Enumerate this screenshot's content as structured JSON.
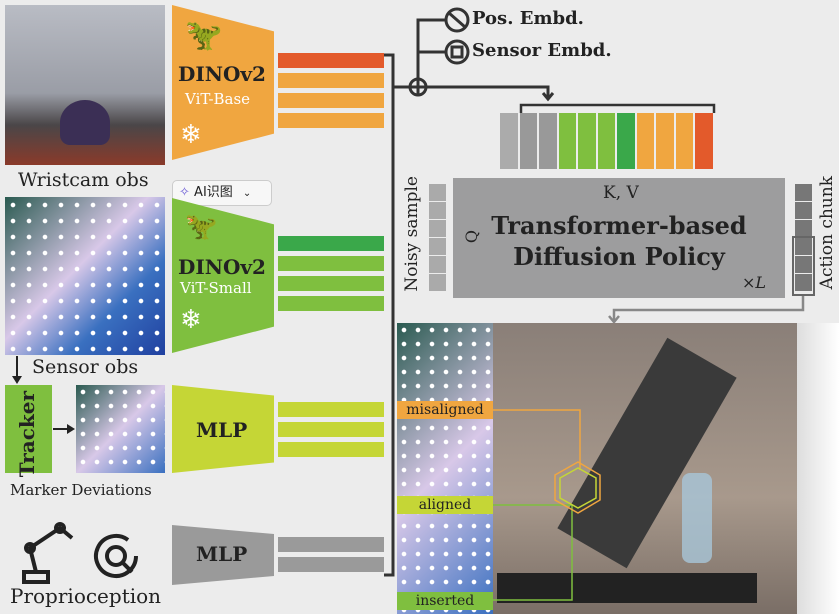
{
  "inputs": {
    "wristcam_label": "Wristcam obs",
    "sensor_label": "Sensor obs",
    "tracker_label": "Tracker",
    "marker_label": "Marker Deviations",
    "proprio_label": "Proprioception"
  },
  "encoders": [
    {
      "name": "DINOv2",
      "sub": "ViT-Base",
      "color": "#f0a640"
    },
    {
      "name": "DINOv2",
      "sub": "ViT-Small",
      "color": "#7fbf3f"
    },
    {
      "name": "MLP",
      "sub": "",
      "color": "#c5d636"
    },
    {
      "name": "MLP",
      "sub": "",
      "color": "#9a9a9a"
    }
  ],
  "ai_button": {
    "label": "AI识图"
  },
  "embeddings": {
    "pos": "Pos. Embd.",
    "sensor": "Sensor Embd."
  },
  "policy": {
    "kv": "K, V",
    "q": "Q",
    "title_line1": "Transformer-based",
    "title_line2": "Diffusion Policy",
    "repeat": "×L",
    "noisy": "Noisy sample",
    "action": "Action chunk"
  },
  "token_colors": [
    "#ababab",
    "#999999",
    "#999999",
    "#7fbf3f",
    "#7fbf3f",
    "#7fbf3f",
    "#3aa84a",
    "#f0a640",
    "#f0a640",
    "#f0a640",
    "#e35a2b"
  ],
  "states": [
    "misaligned",
    "aligned",
    "inserted"
  ],
  "colors": {
    "orange": "#f0a640",
    "red": "#e35a2b",
    "green": "#7fbf3f",
    "dark_green": "#3aa84a",
    "lime": "#c5d636",
    "gray": "#9a9a9a"
  }
}
